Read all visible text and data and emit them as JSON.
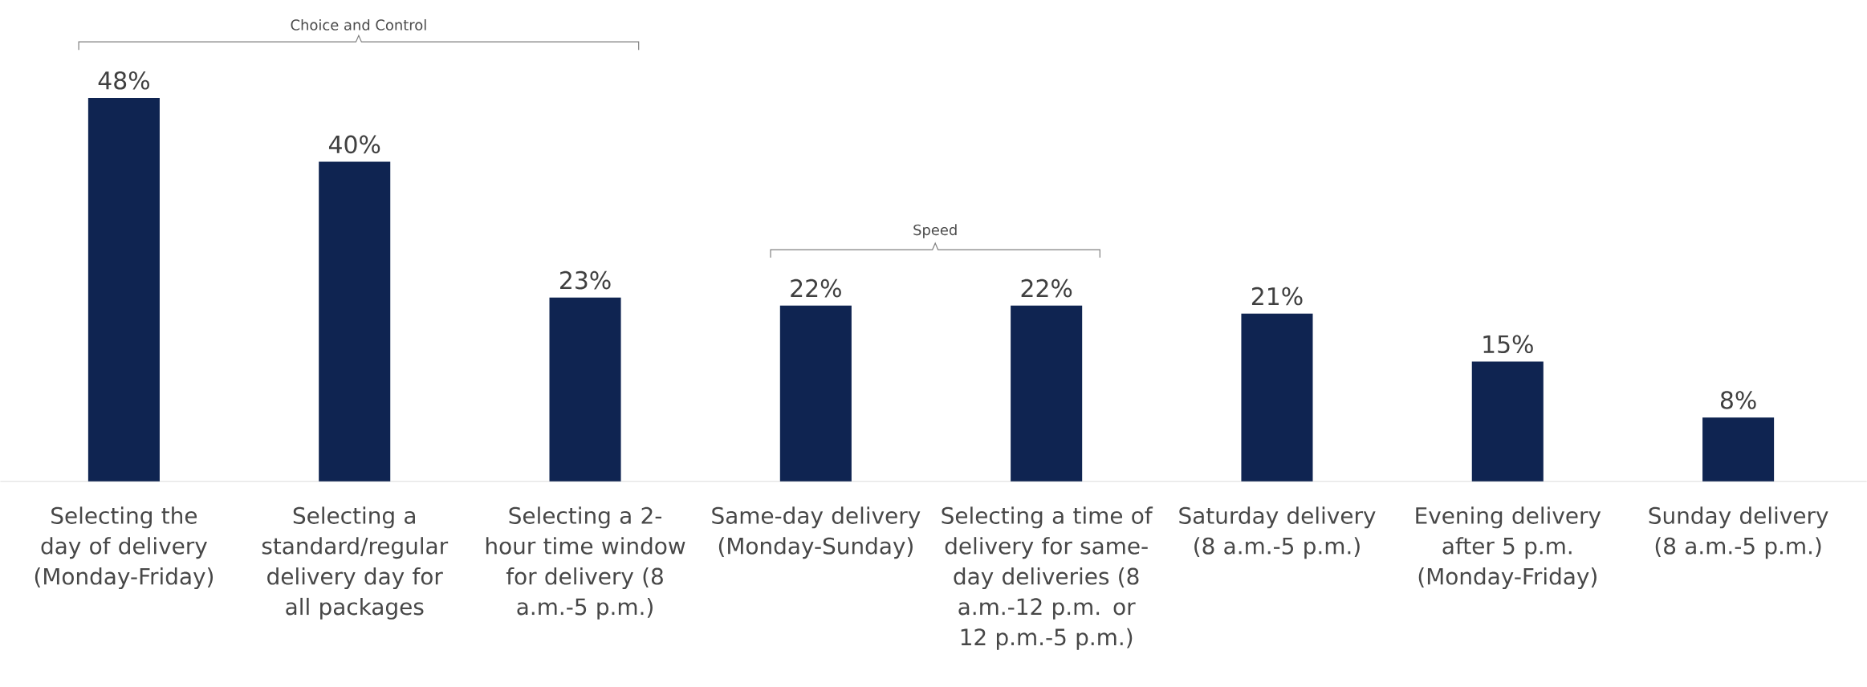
{
  "chart_data": {
    "type": "bar",
    "categories": [
      "Selecting the day of delivery (Monday-Friday)",
      "Selecting a standard/regular delivery day for all packages",
      "Selecting a 2-hour time window for delivery (8 a.m.-5 p.m.)",
      "Same-day delivery (Monday-Sunday)",
      "Selecting a time of delivery for same-day deliveries (8 a.m.-12 p.m. or 12 p.m.-5 p.m.)",
      "Saturday delivery (8 a.m.-5 p.m.)",
      "Evening delivery after 5 p.m. (Monday-Friday)",
      "Sunday delivery (8 a.m.-5 p.m.)"
    ],
    "values": [
      48,
      40,
      23,
      22,
      22,
      21,
      15,
      8
    ],
    "value_labels": [
      "48%",
      "40%",
      "23%",
      "22%",
      "22%",
      "21%",
      "15%",
      "8%"
    ],
    "color": "#0f2451",
    "annotations": [
      "Choice and Control",
      "Speed"
    ]
  }
}
